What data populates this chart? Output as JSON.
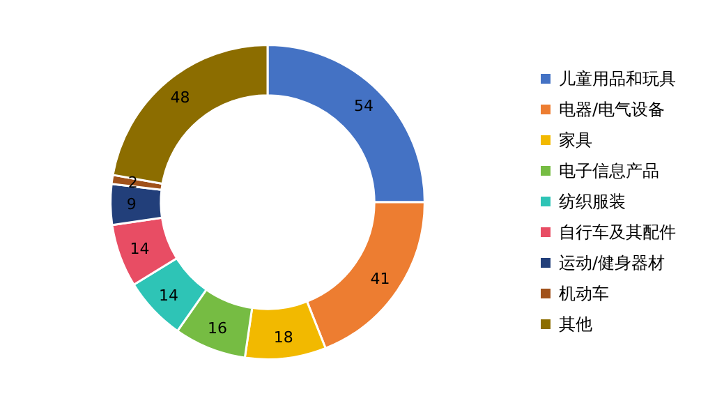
{
  "chart_data": {
    "type": "donut",
    "categories": [
      "儿童用品和玩具",
      "电器/电气设备",
      "家具",
      "电子信息产品",
      "纺织服装",
      "自行车及其配件",
      "运动/健身器材",
      "机动车",
      "其他"
    ],
    "values": [
      54,
      41,
      18,
      16,
      14,
      14,
      9,
      2,
      48
    ],
    "colors": [
      "#4472c4",
      "#ed7d31",
      "#f2b900",
      "#76bc43",
      "#2ec4b6",
      "#e84d64",
      "#223f7a",
      "#a0511a",
      "#8c6d00"
    ],
    "data_labels": true,
    "legend": "right"
  }
}
